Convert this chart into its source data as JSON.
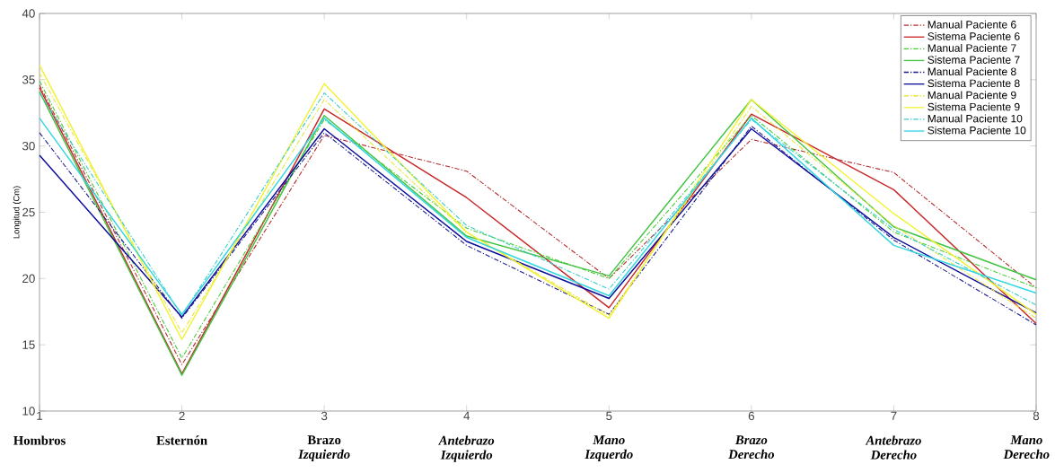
{
  "chart_data": {
    "type": "line",
    "ylabel": "Longitud (Cm)",
    "x": [
      1,
      2,
      3,
      4,
      5,
      6,
      7,
      8
    ],
    "xlim": [
      1,
      8
    ],
    "xticks": [
      1,
      2,
      3,
      4,
      5,
      6,
      7,
      8
    ],
    "ylim": [
      10,
      40
    ],
    "yticks": [
      10,
      15,
      20,
      25,
      30,
      35,
      40
    ],
    "grid": false,
    "legend": "top right",
    "marker": "none",
    "annotations": [
      "Hombros",
      "Esternón",
      "Brazo *Izquierdo*",
      "*Antebrazo Izquierdo*",
      "*Mano Izquerdo*",
      "*Brazo Derecho*",
      "*Antebrazo Derecho*",
      "*Mano Derecho*"
    ],
    "series": [
      {
        "name": "Manual Paciente 6",
        "color": "#b22a2a",
        "line_style": "dashed",
        "values": [
          34.6,
          13.5,
          30.8,
          28.1,
          20.0,
          30.5,
          28.0,
          19.3
        ]
      },
      {
        "name": "Sistema Paciente 6",
        "color": "#c8282a",
        "line_style": "solid",
        "values": [
          34.4,
          12.8,
          32.8,
          26.1,
          17.8,
          32.4,
          26.7,
          16.6
        ]
      },
      {
        "name": "Manual Paciente 7",
        "color": "#44cc33",
        "line_style": "dashed",
        "values": [
          34.9,
          14.0,
          32.0,
          23.8,
          20.0,
          32.3,
          23.5,
          19.3
        ]
      },
      {
        "name": "Sistema Paciente 7",
        "color": "#44c444",
        "line_style": "solid",
        "values": [
          34.1,
          12.7,
          32.3,
          23.2,
          20.2,
          33.5,
          23.9,
          19.9
        ]
      },
      {
        "name": "Manual Paciente 8",
        "color": "#1a1a8c",
        "line_style": "dashed",
        "values": [
          31.0,
          17.0,
          31.0,
          22.5,
          17.3,
          31.5,
          22.9,
          16.5
        ]
      },
      {
        "name": "Sistema Paciente 8",
        "color": "#0c0c9a",
        "line_style": "solid",
        "values": [
          29.3,
          17.1,
          31.3,
          22.8,
          18.5,
          31.3,
          23.1,
          17.4
        ]
      },
      {
        "name": "Manual Paciente 9",
        "color": "#e6e633",
        "line_style": "dashed",
        "values": [
          35.5,
          15.9,
          33.5,
          23.5,
          17.2,
          33.0,
          24.0,
          17.0
        ]
      },
      {
        "name": "Sistema Paciente 9",
        "color": "#f2f233",
        "line_style": "solid",
        "values": [
          36.1,
          15.4,
          34.7,
          23.5,
          17.0,
          33.5,
          24.9,
          17.3
        ]
      },
      {
        "name": "Manual Paciente 10",
        "color": "#33cccc",
        "line_style": "dashed",
        "values": [
          34.0,
          17.2,
          34.0,
          24.0,
          19.2,
          32.0,
          23.7,
          18.0
        ]
      },
      {
        "name": "Sistema Paciente 10",
        "color": "#33d6e0",
        "line_style": "solid",
        "values": [
          32.1,
          17.3,
          32.1,
          23.1,
          18.7,
          32.1,
          22.5,
          18.9
        ]
      }
    ]
  }
}
